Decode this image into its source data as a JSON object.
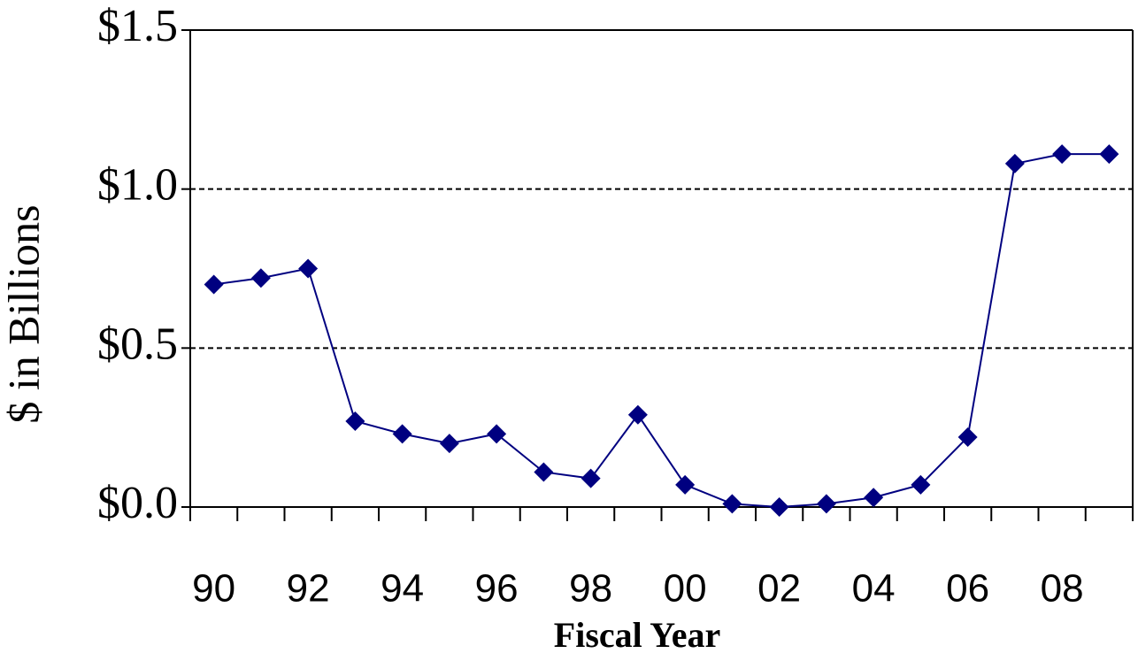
{
  "chart_data": {
    "type": "line",
    "xlabel": "Fiscal Year",
    "ylabel": "$ in Billions",
    "categories": [
      "90",
      null,
      "92",
      null,
      "94",
      null,
      "96",
      null,
      "98",
      null,
      "00",
      null,
      "02",
      null,
      "04",
      null,
      "06",
      null,
      "08",
      null
    ],
    "series": [
      {
        "name": "Value",
        "color": "#000080",
        "values": [
          0.7,
          0.72,
          0.75,
          0.27,
          0.23,
          0.2,
          0.23,
          0.11,
          0.09,
          0.29,
          0.07,
          0.01,
          0.0,
          0.01,
          0.03,
          0.07,
          0.22,
          1.08,
          1.11,
          1.11
        ]
      }
    ],
    "ylim": [
      0,
      1.5
    ],
    "yticks": [
      {
        "value": 0,
        "label": "$0.0"
      },
      {
        "value": 0.5,
        "label": "$0.5"
      },
      {
        "value": 1.0,
        "label": "$1.0"
      },
      {
        "value": 1.5,
        "label": "$1.5"
      }
    ],
    "grid": true
  }
}
